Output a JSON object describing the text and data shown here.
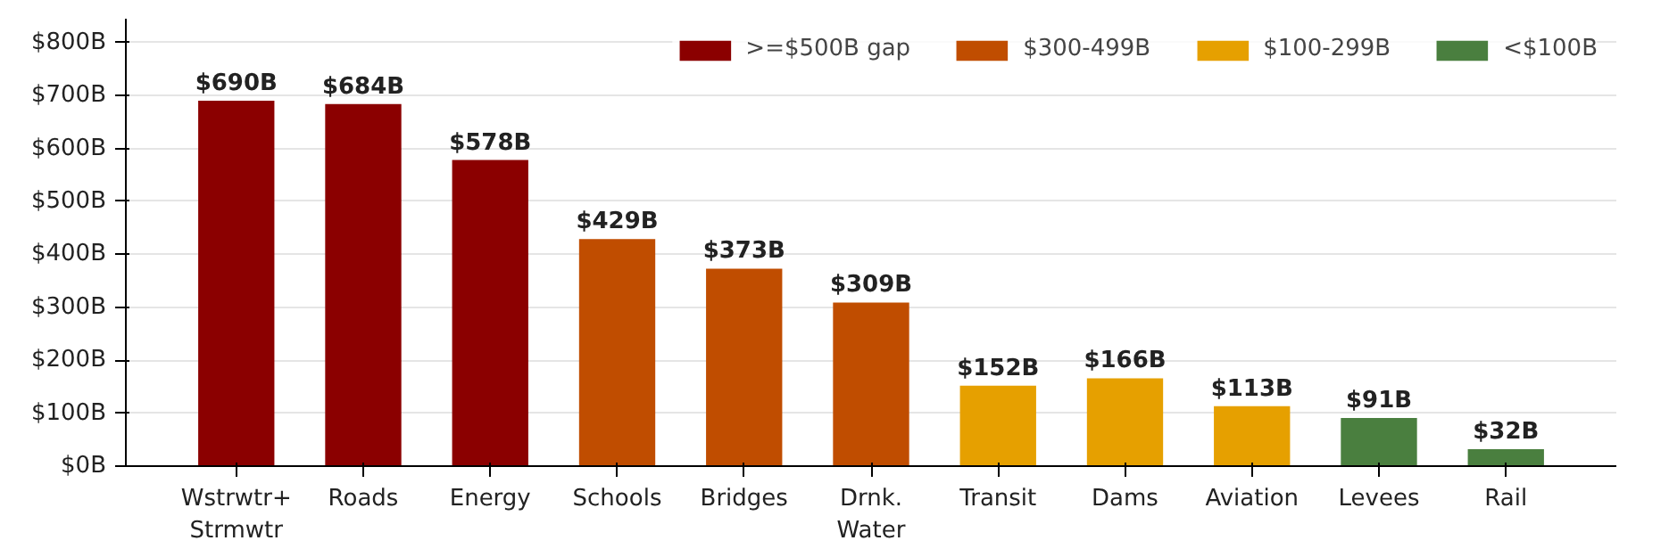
{
  "chart_data": {
    "type": "bar",
    "categories": [
      "Wstrwtr+\nStrmwtr",
      "Roads",
      "Energy",
      "Schools",
      "Bridges",
      "Drnk.\nWater",
      "Transit",
      "Dams",
      "Aviation",
      "Levees",
      "Rail"
    ],
    "series": [
      {
        "name": ">=$500B gap",
        "color": "#8b0000",
        "values": [
          690,
          684,
          578,
          null,
          null,
          null,
          null,
          null,
          null,
          null,
          null
        ],
        "value_labels": [
          "$690B",
          "$684B",
          "$578B",
          null,
          null,
          null,
          null,
          null,
          null,
          null,
          null
        ]
      },
      {
        "name": "$300-499B",
        "color": "#c04d00",
        "values": [
          null,
          null,
          null,
          429,
          373,
          309,
          null,
          null,
          null,
          null,
          null
        ],
        "value_labels": [
          null,
          null,
          null,
          "$429B",
          "$373B",
          "$309B",
          null,
          null,
          null,
          null,
          null
        ]
      },
      {
        "name": "$100-299B",
        "color": "#e6a000",
        "values": [
          null,
          null,
          null,
          null,
          null,
          null,
          152,
          166,
          113,
          null,
          null
        ],
        "value_labels": [
          null,
          null,
          null,
          null,
          null,
          null,
          "$152B",
          "$166B",
          "$113B",
          null,
          null
        ]
      },
      {
        "name": "<$100B",
        "color": "#4a7f3f",
        "values": [
          null,
          null,
          null,
          null,
          null,
          null,
          null,
          null,
          null,
          91,
          32
        ],
        "value_labels": [
          null,
          null,
          null,
          null,
          null,
          null,
          null,
          null,
          null,
          "$91B",
          "$32B"
        ]
      }
    ],
    "ylim": [
      0,
      845
    ],
    "yticks": [
      {
        "value": 0,
        "label": "$0B"
      },
      {
        "value": 100,
        "label": "$100B"
      },
      {
        "value": 200,
        "label": "$200B"
      },
      {
        "value": 300,
        "label": "$300B"
      },
      {
        "value": 400,
        "label": "$400B"
      },
      {
        "value": 500,
        "label": "$500B"
      },
      {
        "value": 600,
        "label": "$600B"
      },
      {
        "value": 700,
        "label": "$700B"
      },
      {
        "value": 800,
        "label": "$800B"
      }
    ],
    "grid": "y",
    "legend": "top right"
  }
}
